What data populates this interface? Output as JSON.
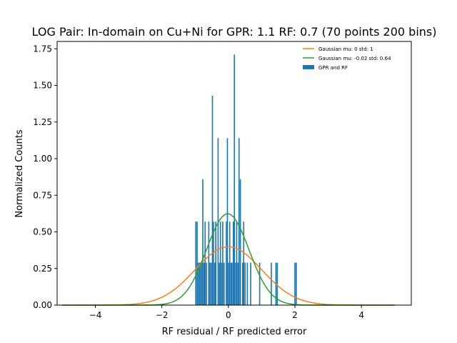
{
  "chart_data": {
    "type": "bar",
    "title": "LOG Pair: In-domain on Cu+Ni for GPR: 1.1 RF: 0.7 (70 points 200 bins)",
    "xlabel": "RF residual / RF predicted error",
    "ylabel": "Normalized Counts",
    "xlim": [
      -5.15,
      5.5
    ],
    "ylim": [
      0,
      1.8
    ],
    "xticks": [
      -4,
      -2,
      0,
      2,
      4
    ],
    "xtick_labels": [
      "−4",
      "−2",
      "0",
      "2",
      "4"
    ],
    "yticks": [
      0.0,
      0.25,
      0.5,
      0.75,
      1.0,
      1.25,
      1.5,
      1.75
    ],
    "ytick_labels": [
      "0.00",
      "0.25",
      "0.50",
      "0.75",
      "1.00",
      "1.25",
      "1.50",
      "1.75"
    ],
    "grid": false,
    "legend_position": "top-right",
    "histogram": {
      "name": "GPR and RF",
      "color": "#1f77b4",
      "bin_width": 0.0353,
      "bars": [
        {
          "x": -0.98,
          "y": 0.57
        },
        {
          "x": -0.94,
          "y": 0.57
        },
        {
          "x": -0.91,
          "y": 0.29
        },
        {
          "x": -0.87,
          "y": 0.29
        },
        {
          "x": -0.84,
          "y": 0.29
        },
        {
          "x": -0.8,
          "y": 0.29
        },
        {
          "x": -0.77,
          "y": 0.86
        },
        {
          "x": -0.73,
          "y": 0.29
        },
        {
          "x": -0.7,
          "y": 0.57
        },
        {
          "x": -0.66,
          "y": 0.29
        },
        {
          "x": -0.59,
          "y": 0.57
        },
        {
          "x": -0.56,
          "y": 0.29
        },
        {
          "x": -0.52,
          "y": 0.29
        },
        {
          "x": -0.48,
          "y": 1.43
        },
        {
          "x": -0.45,
          "y": 0.57
        },
        {
          "x": -0.41,
          "y": 0.29
        },
        {
          "x": -0.38,
          "y": 0.57
        },
        {
          "x": -0.31,
          "y": 1.14
        },
        {
          "x": -0.27,
          "y": 0.29
        },
        {
          "x": -0.24,
          "y": 0.57
        },
        {
          "x": -0.2,
          "y": 0.29
        },
        {
          "x": -0.17,
          "y": 0.57
        },
        {
          "x": -0.13,
          "y": 0.29
        },
        {
          "x": -0.06,
          "y": 0.57
        },
        {
          "x": -0.03,
          "y": 1.14
        },
        {
          "x": 0.01,
          "y": 0.29
        },
        {
          "x": 0.04,
          "y": 0.57
        },
        {
          "x": 0.08,
          "y": 0.29
        },
        {
          "x": 0.11,
          "y": 0.29
        },
        {
          "x": 0.15,
          "y": 0.57
        },
        {
          "x": 0.18,
          "y": 1.71
        },
        {
          "x": 0.22,
          "y": 0.29
        },
        {
          "x": 0.25,
          "y": 0.57
        },
        {
          "x": 0.29,
          "y": 0.29
        },
        {
          "x": 0.32,
          "y": 1.14
        },
        {
          "x": 0.36,
          "y": 0.86
        },
        {
          "x": 0.43,
          "y": 0.29
        },
        {
          "x": 0.46,
          "y": 0.57
        },
        {
          "x": 0.5,
          "y": 0.29
        },
        {
          "x": 0.57,
          "y": 0.29
        },
        {
          "x": 0.67,
          "y": 0.29
        },
        {
          "x": 0.94,
          "y": 0.29
        },
        {
          "x": 1.29,
          "y": 0.29
        },
        {
          "x": 1.43,
          "y": 0.29
        },
        {
          "x": 1.47,
          "y": 0.29
        },
        {
          "x": 2.0,
          "y": 0.29
        },
        {
          "x": 2.04,
          "y": 0.29
        }
      ]
    },
    "series": [
      {
        "name": "Gaussian mu: 0 std: 1",
        "type": "line",
        "mu": 0,
        "std": 1,
        "x_range": [
          -5,
          5
        ],
        "color": "#ff7f0e"
      },
      {
        "name": "Gaussian mu: -0.02 std: 0.64",
        "type": "line",
        "mu": -0.02,
        "std": 0.64,
        "x_range": [
          -5,
          5
        ],
        "color": "#2ca02c"
      }
    ]
  }
}
